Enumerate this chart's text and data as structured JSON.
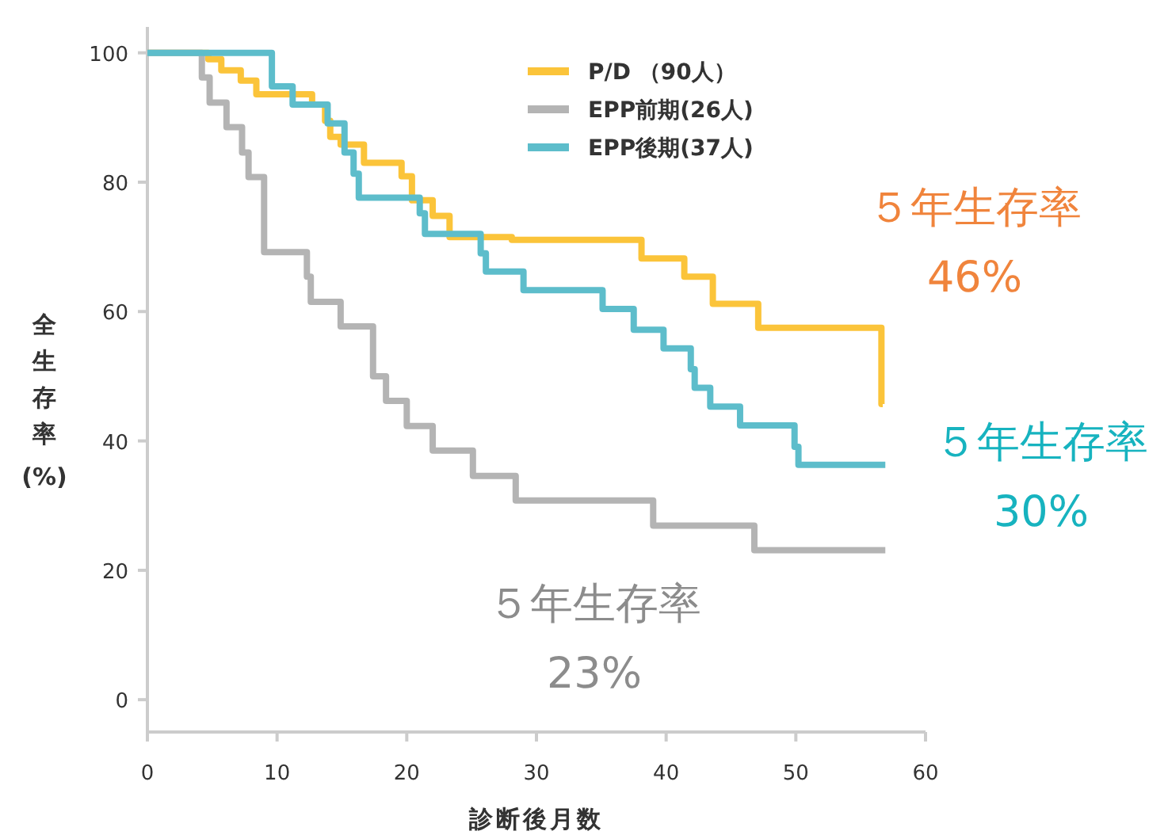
{
  "chart_data": {
    "type": "step",
    "xlabel": "診断後月数",
    "ylabel": "全生存率(%)",
    "xlim": [
      0,
      60
    ],
    "xticks": [
      0,
      10,
      20,
      30,
      40,
      50,
      60
    ],
    "ylim": [
      -5,
      104
    ],
    "yticks": [
      0,
      20,
      40,
      60,
      80,
      100
    ],
    "legend": "top",
    "grid": false,
    "series": [
      {
        "name": "P/D （90人）",
        "color": "#fbc43a",
        "x": [
          0,
          4.7,
          5.7,
          7.2,
          8.4,
          12.7,
          13.7,
          14.1,
          14.9,
          16.7,
          19.6,
          20.4,
          22.0,
          23.3,
          28.1,
          38.1,
          41.4,
          43.6,
          47.1,
          56.6,
          56.7
        ],
        "values": [
          100,
          99,
          97.3,
          95.7,
          93.6,
          92,
          89.5,
          87,
          85.8,
          83,
          80.9,
          77.2,
          74.8,
          71.5,
          71.1,
          68.2,
          65.4,
          61.2,
          57.5,
          45.7,
          45.7
        ]
      },
      {
        "name": "EPP前期(26人)",
        "color": "#b4b4b4",
        "x": [
          0,
          4.2,
          4.8,
          6.1,
          7.3,
          7.8,
          9.0,
          12.3,
          12.6,
          14.9,
          17.4,
          18.4,
          20.0,
          22.0,
          25.1,
          28.4,
          39.0,
          46.8,
          56.9
        ],
        "values": [
          100,
          96.2,
          92.3,
          88.5,
          84.6,
          80.8,
          69.2,
          65.4,
          61.5,
          57.7,
          50,
          46.2,
          42.3,
          38.5,
          34.6,
          30.8,
          26.9,
          23.1,
          23.1
        ]
      },
      {
        "name": "EPP後期(37人)",
        "color": "#5dbdcb",
        "x": [
          0,
          9.6,
          11.2,
          13.9,
          15.2,
          15.9,
          16.3,
          21.0,
          21.4,
          25.7,
          26.1,
          29.0,
          35.1,
          37.5,
          39.8,
          41.9,
          42.2,
          43.4,
          45.7,
          49.9,
          50.2,
          55.7,
          56.9
        ],
        "values": [
          100,
          94.8,
          92,
          89.1,
          84.6,
          81.3,
          77.6,
          75.2,
          72,
          69,
          66.2,
          63.3,
          60.4,
          57.2,
          54.3,
          51.1,
          48.2,
          45.3,
          42.4,
          39.1,
          36.3,
          36.3,
          36.3
        ]
      }
    ],
    "annotations": [
      "５年生存率\n46%",
      "５年生存率\n30%",
      "５年生存率\n23%"
    ]
  }
}
